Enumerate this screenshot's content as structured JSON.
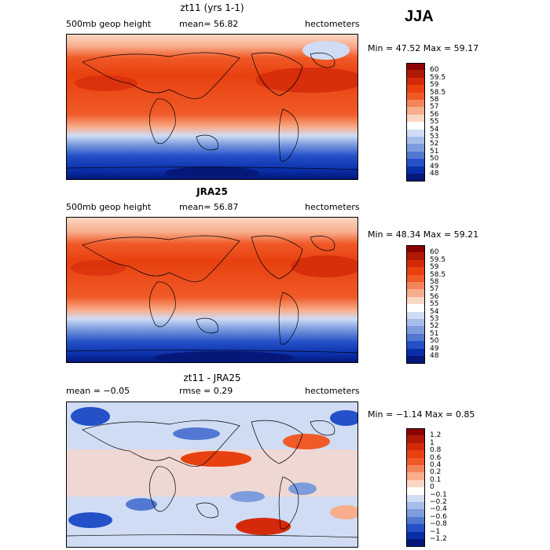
{
  "season": "JJA",
  "panels": [
    {
      "title": "zt11 (yrs 1-1)",
      "left_label": "500mb geop height",
      "center_label": "mean=   56.82",
      "right_label": "hectometers",
      "minmax": "Min =  47.52 Max =  59.17",
      "legend": [
        "60",
        "59.5",
        "59",
        "58.5",
        "58",
        "57",
        "56",
        "55",
        "54",
        "53",
        "52",
        "51",
        "50",
        "49",
        "48"
      ],
      "colors": [
        "#8b0000",
        "#b01a05",
        "#d42a0a",
        "#e8400f",
        "#f05a28",
        "#f4845a",
        "#f8ad8c",
        "#fcd6c4",
        "#ffffff",
        "#cfdcf4",
        "#a6bdeb",
        "#7c9cde",
        "#5278d2",
        "#2450c8",
        "#0a2ea8",
        "#05187a"
      ]
    },
    {
      "title": "JRA25",
      "left_label": "500mb geop height",
      "center_label": "mean=   56.87",
      "right_label": "hectometers",
      "minmax": "Min =  48.34 Max =  59.21",
      "legend": [
        "60",
        "59.5",
        "59",
        "58.5",
        "58",
        "57",
        "56",
        "55",
        "54",
        "53",
        "52",
        "51",
        "50",
        "49",
        "48"
      ],
      "colors": [
        "#8b0000",
        "#b01a05",
        "#d42a0a",
        "#e8400f",
        "#f05a28",
        "#f4845a",
        "#f8ad8c",
        "#fcd6c4",
        "#ffffff",
        "#cfdcf4",
        "#a6bdeb",
        "#7c9cde",
        "#5278d2",
        "#2450c8",
        "#0a2ea8",
        "#05187a"
      ]
    },
    {
      "title": "zt11 - JRA25",
      "left_label": "mean =   −0.05",
      "center_label": "rmse =    0.29",
      "right_label": "hectometers",
      "minmax": "Min =  −1.14 Max =   0.85",
      "legend": [
        "1.2",
        "1",
        "0.8",
        "0.6",
        "0.4",
        "0.2",
        "0.1",
        "0",
        "−0.1",
        "−0.2",
        "−0.4",
        "−0.6",
        "−0.8",
        "−1",
        "−1.2"
      ],
      "colors": [
        "#8b0000",
        "#b01a05",
        "#d42a0a",
        "#e8400f",
        "#f05a28",
        "#f4845a",
        "#f8ad8c",
        "#fcd6c4",
        "#ffffff",
        "#cfdcf4",
        "#a6bdeb",
        "#7c9cde",
        "#5278d2",
        "#2450c8",
        "#0a2ea8",
        "#05187a"
      ]
    }
  ]
}
